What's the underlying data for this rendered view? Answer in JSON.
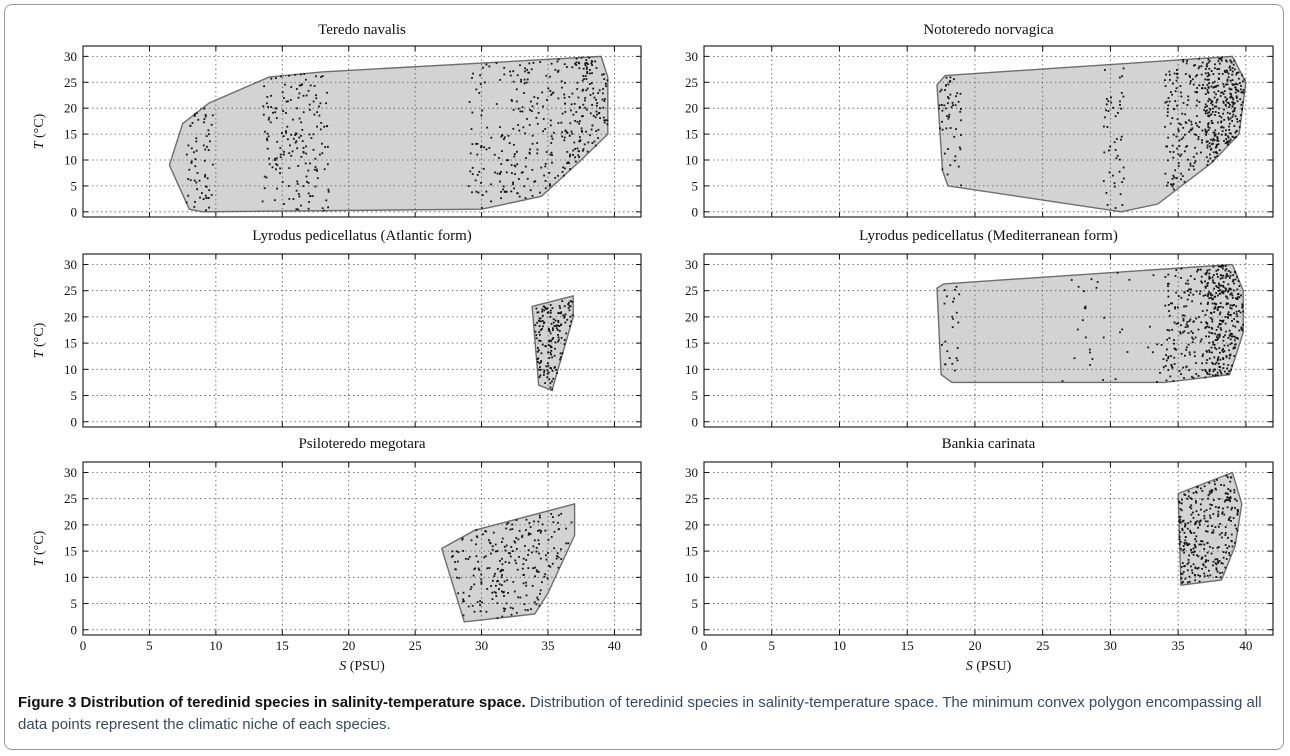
{
  "chart_data": [
    {
      "type": "scatter",
      "title": "Teredo navalis",
      "xlabel_var": "S",
      "xlabel_unit": "(PSU)",
      "ylabel_var": "T",
      "ylabel_unit": "(°C)",
      "xlim": [
        0,
        42
      ],
      "ylim": [
        -1,
        32
      ],
      "xticks": [
        0,
        5,
        10,
        15,
        20,
        25,
        30,
        35,
        40
      ],
      "yticks": [
        0,
        5,
        10,
        15,
        20,
        25,
        30
      ],
      "grid": true,
      "hull": [
        [
          6.5,
          9.0
        ],
        [
          7.5,
          17.0
        ],
        [
          9.5,
          21.0
        ],
        [
          14.0,
          26.0
        ],
        [
          18.0,
          27.0
        ],
        [
          39.0,
          30.0
        ],
        [
          39.5,
          26.0
        ],
        [
          39.5,
          15.0
        ],
        [
          37.5,
          10.0
        ],
        [
          34.5,
          3.0
        ],
        [
          30.0,
          0.5
        ],
        [
          9.0,
          0.0
        ],
        [
          8.0,
          0.5
        ]
      ],
      "points": []
    },
    {
      "type": "scatter",
      "title": "Nototeredo norvagica",
      "xlabel_var": "S",
      "xlabel_unit": "(PSU)",
      "ylabel_var": "T",
      "ylabel_unit": "(°C)",
      "xlim": [
        0,
        42
      ],
      "ylim": [
        -1,
        32
      ],
      "xticks": [
        0,
        5,
        10,
        15,
        20,
        25,
        30,
        35,
        40
      ],
      "yticks": [
        0,
        5,
        10,
        15,
        20,
        25,
        30
      ],
      "grid": true,
      "hull": [
        [
          17.2,
          24.5
        ],
        [
          17.8,
          26.3
        ],
        [
          39.0,
          30.0
        ],
        [
          40.0,
          25.0
        ],
        [
          39.5,
          15.0
        ],
        [
          37.5,
          9.5
        ],
        [
          33.5,
          1.5
        ],
        [
          30.8,
          0.0
        ],
        [
          18.0,
          5.0
        ],
        [
          17.6,
          8.0
        ]
      ],
      "points": []
    },
    {
      "type": "scatter",
      "title": "Lyrodus pedicellatus (Atlantic form)",
      "xlabel_var": "S",
      "xlabel_unit": "(PSU)",
      "ylabel_var": "T",
      "ylabel_unit": "(°C)",
      "xlim": [
        0,
        42
      ],
      "ylim": [
        -1,
        32
      ],
      "xticks": [
        0,
        5,
        10,
        15,
        20,
        25,
        30,
        35,
        40
      ],
      "yticks": [
        0,
        5,
        10,
        15,
        20,
        25,
        30
      ],
      "grid": true,
      "hull": [
        [
          33.8,
          22.0
        ],
        [
          36.9,
          24.0
        ],
        [
          36.9,
          20.0
        ],
        [
          35.3,
          6.0
        ],
        [
          34.3,
          7.0
        ]
      ],
      "points": []
    },
    {
      "type": "scatter",
      "title": "Lyrodus pedicellatus (Mediterranean form)",
      "xlabel_var": "S",
      "xlabel_unit": "(PSU)",
      "ylabel_var": "T",
      "ylabel_unit": "(°C)",
      "xlim": [
        0,
        42
      ],
      "ylim": [
        -1,
        32
      ],
      "xticks": [
        0,
        5,
        10,
        15,
        20,
        25,
        30,
        35,
        40
      ],
      "yticks": [
        0,
        5,
        10,
        15,
        20,
        25,
        30
      ],
      "grid": true,
      "hull": [
        [
          17.2,
          25.5
        ],
        [
          17.7,
          26.3
        ],
        [
          39.0,
          30.0
        ],
        [
          39.8,
          25.0
        ],
        [
          39.8,
          17.0
        ],
        [
          38.8,
          9.0
        ],
        [
          34.0,
          7.5
        ],
        [
          18.3,
          7.5
        ],
        [
          17.5,
          9.0
        ]
      ],
      "points": []
    },
    {
      "type": "scatter",
      "title": "Psiloteredo megotara",
      "xlabel_var": "S",
      "xlabel_unit": "(PSU)",
      "ylabel_var": "T",
      "ylabel_unit": "(°C)",
      "xlim": [
        0,
        42
      ],
      "ylim": [
        -1,
        32
      ],
      "xticks": [
        0,
        5,
        10,
        15,
        20,
        25,
        30,
        35,
        40
      ],
      "yticks": [
        0,
        5,
        10,
        15,
        20,
        25,
        30
      ],
      "grid": true,
      "hull": [
        [
          27.0,
          15.5
        ],
        [
          29.5,
          19.0
        ],
        [
          37.0,
          24.0
        ],
        [
          37.0,
          18.0
        ],
        [
          35.0,
          7.0
        ],
        [
          34.0,
          3.0
        ],
        [
          28.7,
          1.5
        ]
      ],
      "points": []
    },
    {
      "type": "scatter",
      "title": "Bankia carinata",
      "xlabel_var": "S",
      "xlabel_unit": "(PSU)",
      "ylabel_var": "T",
      "ylabel_unit": "(°C)",
      "xlim": [
        0,
        42
      ],
      "ylim": [
        -1,
        32
      ],
      "xticks": [
        0,
        5,
        10,
        15,
        20,
        25,
        30,
        35,
        40
      ],
      "yticks": [
        0,
        5,
        10,
        15,
        20,
        25,
        30
      ],
      "grid": true,
      "hull": [
        [
          35.0,
          26.0
        ],
        [
          39.0,
          30.0
        ],
        [
          39.7,
          24.0
        ],
        [
          39.2,
          16.0
        ],
        [
          38.2,
          9.5
        ],
        [
          35.2,
          8.5
        ]
      ],
      "points": []
    }
  ],
  "caption": {
    "bold": "Figure 3 Distribution of teredinid species in salinity-temperature space.",
    "text": " Distribution of teredinid species in salinity-temperature space. The minimum convex polygon encompassing all data points represent the climatic niche of each species."
  },
  "colors": {
    "polygon_fill": "#d3d3d3",
    "polygon_stroke": "#6e6e6e",
    "points": "#111111",
    "grid": "#555555",
    "frame": "#9a9a9a"
  }
}
